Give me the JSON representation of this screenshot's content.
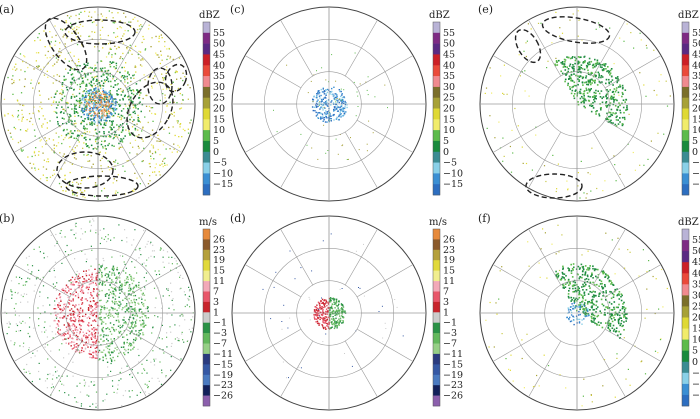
{
  "panels": [
    {
      "label": "(a)",
      "unit": "dBZ",
      "scale": "reflectivity",
      "ellipses": true,
      "clutter": "full-ref"
    },
    {
      "label": "(c)",
      "unit": "dBZ",
      "scale": "reflectivity",
      "ellipses": false,
      "clutter": "center-blue"
    },
    {
      "label": "(e)",
      "unit": "dBZ",
      "scale": "reflectivity",
      "ellipses": true,
      "clutter": "clean-ref"
    },
    {
      "label": "(b)",
      "unit": "m/s",
      "scale": "velocity",
      "ellipses": false,
      "clutter": "full-vel"
    },
    {
      "label": "(d)",
      "unit": "m/s",
      "scale": "velocity",
      "ellipses": false,
      "clutter": "center-vel"
    },
    {
      "label": "(f)",
      "unit": "dBZ",
      "scale": "reflectivity",
      "ellipses": false,
      "clutter": "clean-ref2"
    }
  ],
  "reflectivity_scale": {
    "labels": [
      "55",
      "50",
      "45",
      "40",
      "35",
      "30",
      "25",
      "20",
      "15",
      "10",
      "5",
      "0",
      "−5",
      "−10",
      "−15"
    ],
    "colors": [
      "#b9b3d6",
      "#7e2b84",
      "#5b2a83",
      "#cc2026",
      "#ea4a3a",
      "#f08a8f",
      "#7b6f2a",
      "#a7a136",
      "#dfd935",
      "#f1ec6b",
      "#5dbb4b",
      "#198a3c",
      "#3c8c93",
      "#8ad0e8",
      "#3b8fd3",
      "#2d6ec0"
    ]
  },
  "velocity_scale": {
    "labels": [
      "26",
      "23",
      "19",
      "15",
      "11",
      "7",
      "3",
      "1",
      "−1",
      "−3",
      "−7",
      "−11",
      "−15",
      "−19",
      "−23",
      "−26"
    ],
    "colors": [
      "#e78a3b",
      "#8b5a2b",
      "#b5a03b",
      "#e1d93a",
      "#f1ee8e",
      "#f2a9b8",
      "#e8566a",
      "#c8242d",
      "#cccccc",
      "#2a9146",
      "#63b85d",
      "#96cf86",
      "#2a3b7f",
      "#3558a4",
      "#4a7ac0",
      "#12205a",
      "#8c5fad"
    ]
  },
  "icons": {
    "ellipse": "dashed-ellipse-annotation",
    "circle": "range-ring-circle"
  }
}
